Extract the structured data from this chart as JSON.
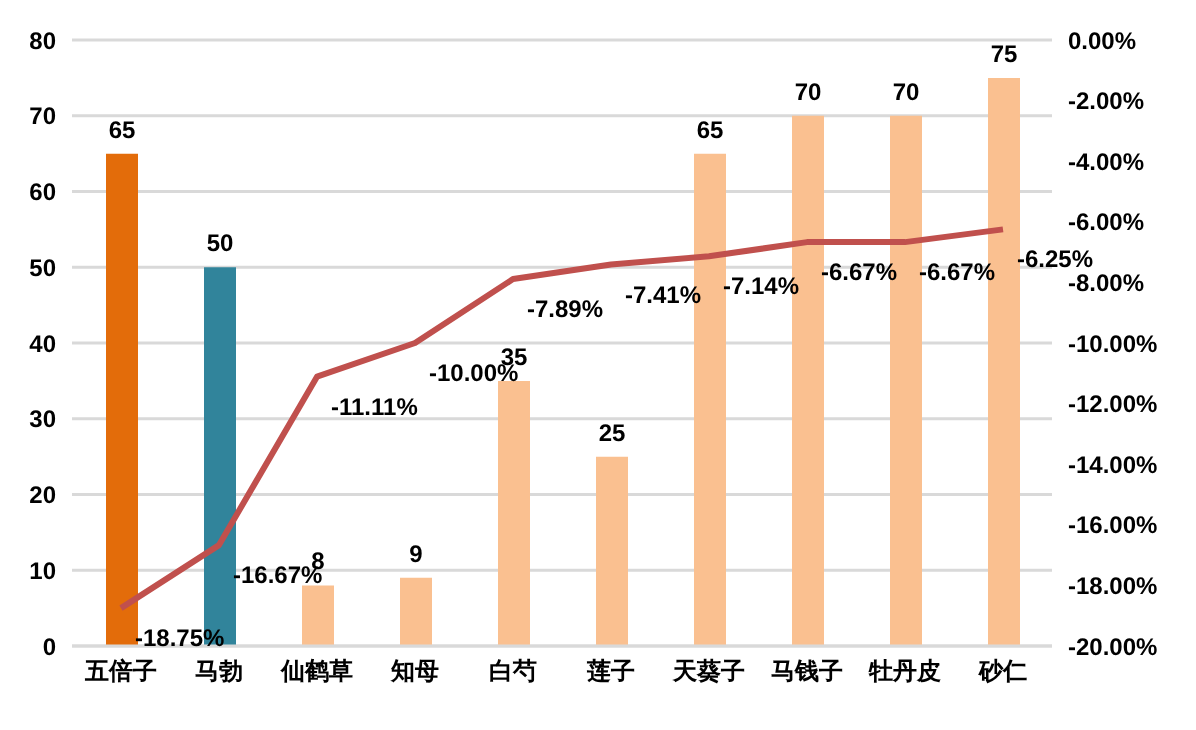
{
  "chart_data": {
    "type": "bar",
    "categories": [
      "五倍子",
      "马勃",
      "仙鹤草",
      "知母",
      "白芍",
      "莲子",
      "天葵子",
      "马钱子",
      "牡丹皮",
      "砂仁"
    ],
    "series": [
      {
        "colors": [
          "#e36c0a",
          "#31849b",
          "#fac090",
          "#fac090",
          "#fac090",
          "#fac090",
          "#fac090",
          "#fac090",
          "#fac090",
          "#fac090"
        ],
        "values": [
          65,
          50,
          8,
          9,
          35,
          25,
          65,
          70,
          70,
          75
        ]
      },
      {
        "type": "line",
        "axis": "y2",
        "color": "#c0504d",
        "marker": "none",
        "values": [
          -18.75,
          -16.67,
          -11.11,
          -10.0,
          -7.89,
          -7.41,
          -7.14,
          -6.67,
          -6.67,
          -6.25
        ],
        "value_labels": [
          "-18.75%",
          "-16.67%",
          "-11.11%",
          "-10.00%",
          "-7.89%",
          "-7.41%",
          "-7.14%",
          "-6.67%",
          "-6.67%",
          "-6.25%"
        ]
      }
    ],
    "data_labels": true,
    "ylim": [
      0,
      80
    ],
    "yticks": [
      0,
      10,
      20,
      30,
      40,
      50,
      60,
      70,
      80
    ],
    "y2lim": [
      -20,
      0
    ],
    "y2ticks": [
      {
        "value": -20,
        "label": "-20.00%"
      },
      {
        "value": -18,
        "label": "-18.00%"
      },
      {
        "value": -16,
        "label": "-16.00%"
      },
      {
        "value": -14,
        "label": "-14.00%"
      },
      {
        "value": -12,
        "label": "-12.00%"
      },
      {
        "value": -10,
        "label": "-10.00%"
      },
      {
        "value": -8,
        "label": "-8.00%"
      },
      {
        "value": -6,
        "label": "-6.00%"
      },
      {
        "value": -4,
        "label": "-4.00%"
      },
      {
        "value": -2,
        "label": "-2.00%"
      },
      {
        "value": 0,
        "label": "0.00%"
      }
    ],
    "grid": "y"
  }
}
